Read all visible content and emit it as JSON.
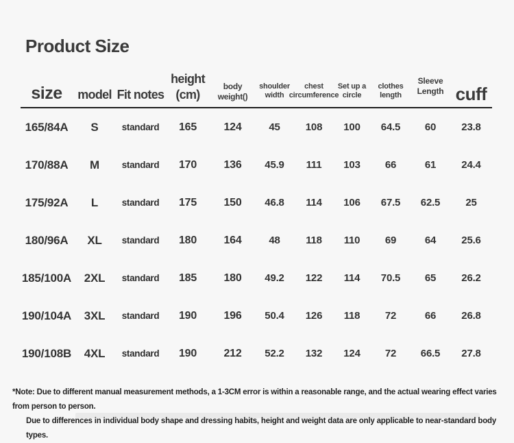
{
  "page": {
    "title": "Product Size",
    "background_color": "#f7f7f7",
    "text_color": "#333333",
    "rule_color": "#1c1c1c"
  },
  "table": {
    "header": {
      "size": "size",
      "model": "model",
      "fit_notes": "Fit notes",
      "height": "height (cm)",
      "body_weight": "body weight()",
      "shoulder_line1": "shoulder",
      "shoulder_line2": "width",
      "chest_line1": "chest",
      "chest_line2": "circumference",
      "setup_line1": "Set up a",
      "setup_line2": "circle",
      "clothes_line1": "clothes",
      "clothes_line2": "length",
      "sleeve": "Sleeve Length",
      "cuff": "cuff"
    },
    "rows": [
      [
        "165/84A",
        "S",
        "standard",
        "165",
        "124",
        "45",
        "108",
        "100",
        "64.5",
        "60",
        "23.8"
      ],
      [
        "170/88A",
        "M",
        "standard",
        "170",
        "136",
        "45.9",
        "111",
        "103",
        "66",
        "61",
        "24.4"
      ],
      [
        "175/92A",
        "L",
        "standard",
        "175",
        "150",
        "46.8",
        "114",
        "106",
        "67.5",
        "62.5",
        "25"
      ],
      [
        "180/96A",
        "XL",
        "standard",
        "180",
        "164",
        "48",
        "118",
        "110",
        "69",
        "64",
        "25.6"
      ],
      [
        "185/100A",
        "2XL",
        "standard",
        "185",
        "180",
        "49.2",
        "122",
        "114",
        "70.5",
        "65",
        "26.2"
      ],
      [
        "190/104A",
        "3XL",
        "standard",
        "190",
        "196",
        "50.4",
        "126",
        "118",
        "72",
        "66",
        "26.8"
      ],
      [
        "190/108B",
        "4XL",
        "standard",
        "190",
        "212",
        "52.2",
        "132",
        "124",
        "72",
        "66.5",
        "27.8"
      ]
    ]
  },
  "notes": {
    "line1": "*Note: Due to different manual measurement methods, a 1-3CM error is within a reasonable range, and the actual wearing effect varies from person to person.",
    "line2": "Due to differences in individual body shape and dressing habits, height and weight data are only applicable to near-standard body types."
  }
}
